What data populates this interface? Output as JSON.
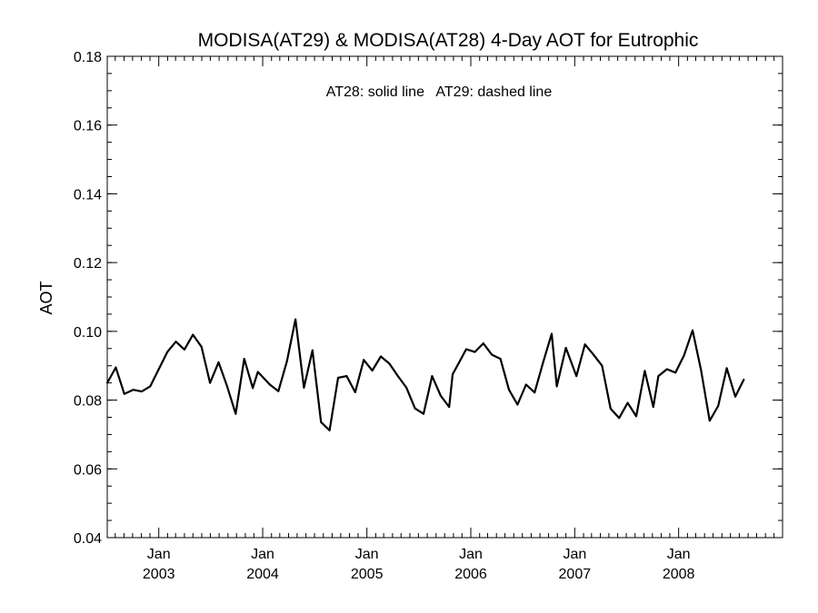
{
  "chart_data": {
    "type": "line",
    "title": "MODISA(AT29) & MODISA(AT28) 4-Day AOT for Eutrophic",
    "annotation": "AT28: solid line   AT29: dashed line",
    "xlabel": "",
    "ylabel": "AOT",
    "ylim": [
      0.04,
      0.18
    ],
    "xlim": [
      "2002-07-04",
      "2008-12-31"
    ],
    "yticks": [
      "0.04",
      "0.06",
      "0.08",
      "0.10",
      "0.12",
      "0.14",
      "0.16",
      "0.18"
    ],
    "xticks": [
      {
        "month": "Jan",
        "year": "2003",
        "date": "2003-01-01"
      },
      {
        "month": "Jan",
        "year": "2004",
        "date": "2004-01-01"
      },
      {
        "month": "Jan",
        "year": "2005",
        "date": "2005-01-01"
      },
      {
        "month": "Jan",
        "year": "2006",
        "date": "2006-01-01"
      },
      {
        "month": "Jan",
        "year": "2007",
        "date": "2007-01-01"
      },
      {
        "month": "Jan",
        "year": "2008",
        "date": "2008-01-01"
      }
    ],
    "grid": false,
    "line_color": "#000000",
    "series": [
      {
        "style": "solid",
        "points": [
          [
            "2002-07-04",
            0.085
          ],
          [
            "2002-08-03",
            0.0895
          ],
          [
            "2002-09-02",
            0.0818
          ],
          [
            "2002-10-03",
            0.083
          ],
          [
            "2002-11-02",
            0.0825
          ],
          [
            "2002-12-02",
            0.084
          ],
          [
            "2003-01-01",
            0.089
          ],
          [
            "2003-01-31",
            0.094
          ],
          [
            "2003-03-02",
            0.097
          ],
          [
            "2003-04-01",
            0.0947
          ],
          [
            "2003-05-01",
            0.099
          ],
          [
            "2003-05-31",
            0.0955
          ],
          [
            "2003-06-30",
            0.085
          ],
          [
            "2003-07-30",
            0.091
          ],
          [
            "2003-08-29",
            0.084
          ],
          [
            "2003-09-28",
            0.076
          ],
          [
            "2003-10-28",
            0.092
          ],
          [
            "2003-11-27",
            0.0835
          ],
          [
            "2003-12-15",
            0.0882
          ],
          [
            "2004-01-26",
            0.0845
          ],
          [
            "2004-02-25",
            0.0826
          ],
          [
            "2004-03-26",
            0.0913
          ],
          [
            "2004-04-25",
            0.1035
          ],
          [
            "2004-05-25",
            0.0836
          ],
          [
            "2004-06-24",
            0.0945
          ],
          [
            "2004-07-24",
            0.0736
          ],
          [
            "2004-08-23",
            0.0712
          ],
          [
            "2004-09-22",
            0.0865
          ],
          [
            "2004-10-22",
            0.087
          ],
          [
            "2004-11-21",
            0.0823
          ],
          [
            "2004-12-21",
            0.0917
          ],
          [
            "2005-01-20",
            0.0886
          ],
          [
            "2005-02-19",
            0.0927
          ],
          [
            "2005-03-21",
            0.0906
          ],
          [
            "2005-04-20",
            0.087
          ],
          [
            "2005-05-20",
            0.0836
          ],
          [
            "2005-06-19",
            0.0776
          ],
          [
            "2005-07-19",
            0.076
          ],
          [
            "2005-08-18",
            0.087
          ],
          [
            "2005-09-17",
            0.0813
          ],
          [
            "2005-10-17",
            0.078
          ],
          [
            "2005-10-29",
            0.0875
          ],
          [
            "2005-12-16",
            0.0948
          ],
          [
            "2006-01-15",
            0.094
          ],
          [
            "2006-02-14",
            0.0965
          ],
          [
            "2006-03-16",
            0.0932
          ],
          [
            "2006-04-15",
            0.092
          ],
          [
            "2006-05-15",
            0.083
          ],
          [
            "2006-06-14",
            0.0787
          ],
          [
            "2006-07-14",
            0.0845
          ],
          [
            "2006-08-13",
            0.0822
          ],
          [
            "2006-09-12",
            0.091
          ],
          [
            "2006-10-12",
            0.0993
          ],
          [
            "2006-10-30",
            0.084
          ],
          [
            "2006-12-01",
            0.0952
          ],
          [
            "2007-01-07",
            0.087
          ],
          [
            "2007-02-06",
            0.0962
          ],
          [
            "2007-03-08",
            0.0932
          ],
          [
            "2007-04-07",
            0.09
          ],
          [
            "2007-05-07",
            0.0775
          ],
          [
            "2007-06-06",
            0.0748
          ],
          [
            "2007-07-06",
            0.0792
          ],
          [
            "2007-08-05",
            0.0753
          ],
          [
            "2007-09-04",
            0.0885
          ],
          [
            "2007-10-04",
            0.078
          ],
          [
            "2007-10-22",
            0.087
          ],
          [
            "2007-11-21",
            0.089
          ],
          [
            "2007-12-21",
            0.088
          ],
          [
            "2008-01-20",
            0.093
          ],
          [
            "2008-02-19",
            0.1003
          ],
          [
            "2008-03-20",
            0.0886
          ],
          [
            "2008-04-19",
            0.074
          ],
          [
            "2008-05-19",
            0.0783
          ],
          [
            "2008-06-18",
            0.0893
          ],
          [
            "2008-07-18",
            0.081
          ],
          [
            "2008-08-17",
            0.086
          ]
        ]
      }
    ]
  }
}
